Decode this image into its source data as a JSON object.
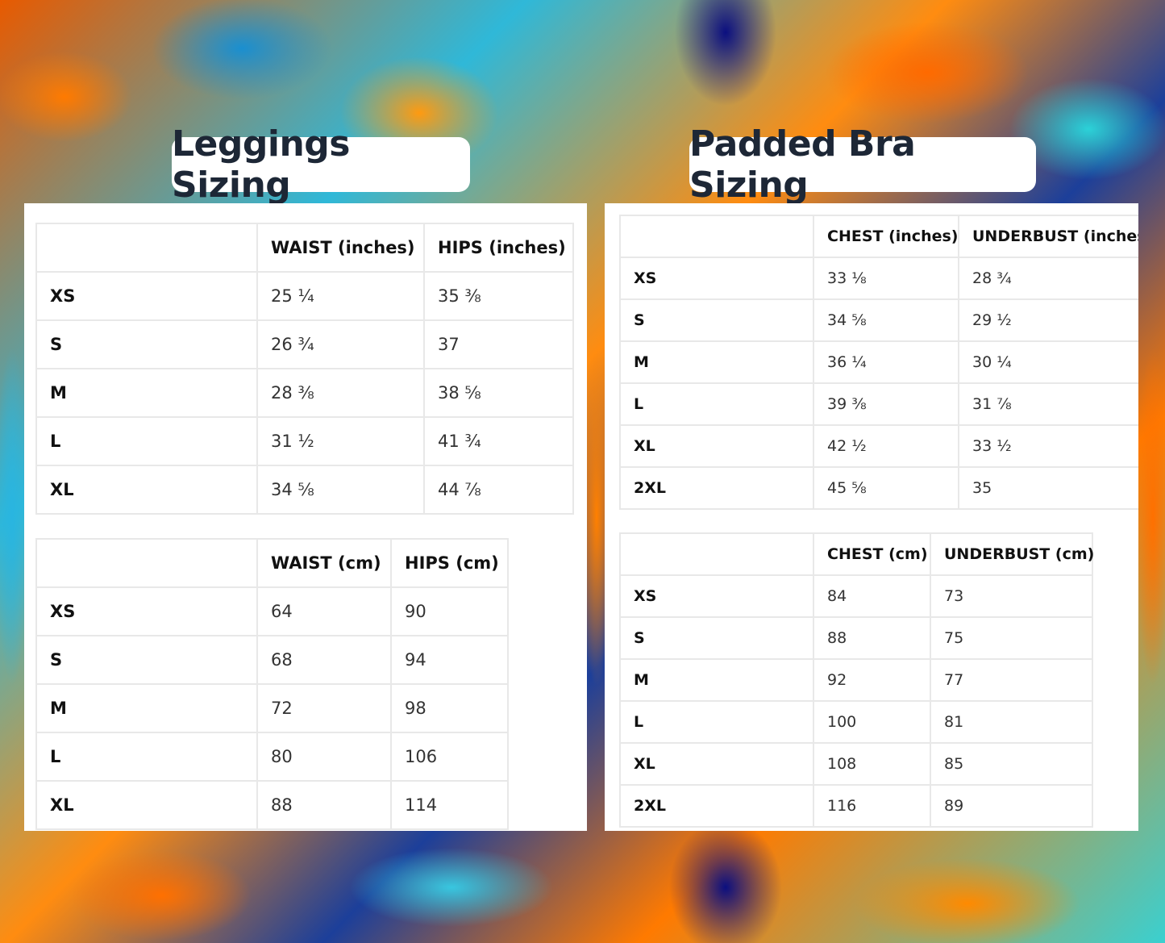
{
  "leggings": {
    "title": "Leggings Sizing",
    "inches": {
      "headers": [
        "",
        "WAIST (inches)",
        "HIPS (inches)"
      ],
      "rows": [
        [
          "XS",
          "25 ¼",
          "35 ⅜"
        ],
        [
          "S",
          "26 ¾",
          "37"
        ],
        [
          "M",
          "28 ⅜",
          "38 ⅝"
        ],
        [
          "L",
          "31 ½",
          "41 ¾"
        ],
        [
          "XL",
          "34 ⅝",
          "44 ⅞"
        ]
      ]
    },
    "cm": {
      "headers": [
        "",
        "WAIST (cm)",
        "HIPS (cm)"
      ],
      "rows": [
        [
          "XS",
          "64",
          "90"
        ],
        [
          "S",
          "68",
          "94"
        ],
        [
          "M",
          "72",
          "98"
        ],
        [
          "L",
          "80",
          "106"
        ],
        [
          "XL",
          "88",
          "114"
        ]
      ]
    }
  },
  "bra": {
    "title": "Padded Bra Sizing",
    "inches": {
      "headers": [
        "",
        "CHEST (inches)",
        "UNDERBUST (inches)"
      ],
      "rows": [
        [
          "XS",
          "33 ⅛",
          "28 ¾"
        ],
        [
          "S",
          "34 ⅝",
          "29 ½"
        ],
        [
          "M",
          "36 ¼",
          "30 ¼"
        ],
        [
          "L",
          "39 ⅜",
          "31 ⅞"
        ],
        [
          "XL",
          "42 ½",
          "33 ½"
        ],
        [
          "2XL",
          "45 ⅝",
          "35"
        ]
      ]
    },
    "cm": {
      "headers": [
        "",
        "CHEST (cm)",
        "UNDERBUST (cm)"
      ],
      "rows": [
        [
          "XS",
          "84",
          "73"
        ],
        [
          "S",
          "88",
          "75"
        ],
        [
          "M",
          "92",
          "77"
        ],
        [
          "L",
          "100",
          "81"
        ],
        [
          "XL",
          "108",
          "85"
        ],
        [
          "2XL",
          "116",
          "89"
        ]
      ]
    }
  }
}
